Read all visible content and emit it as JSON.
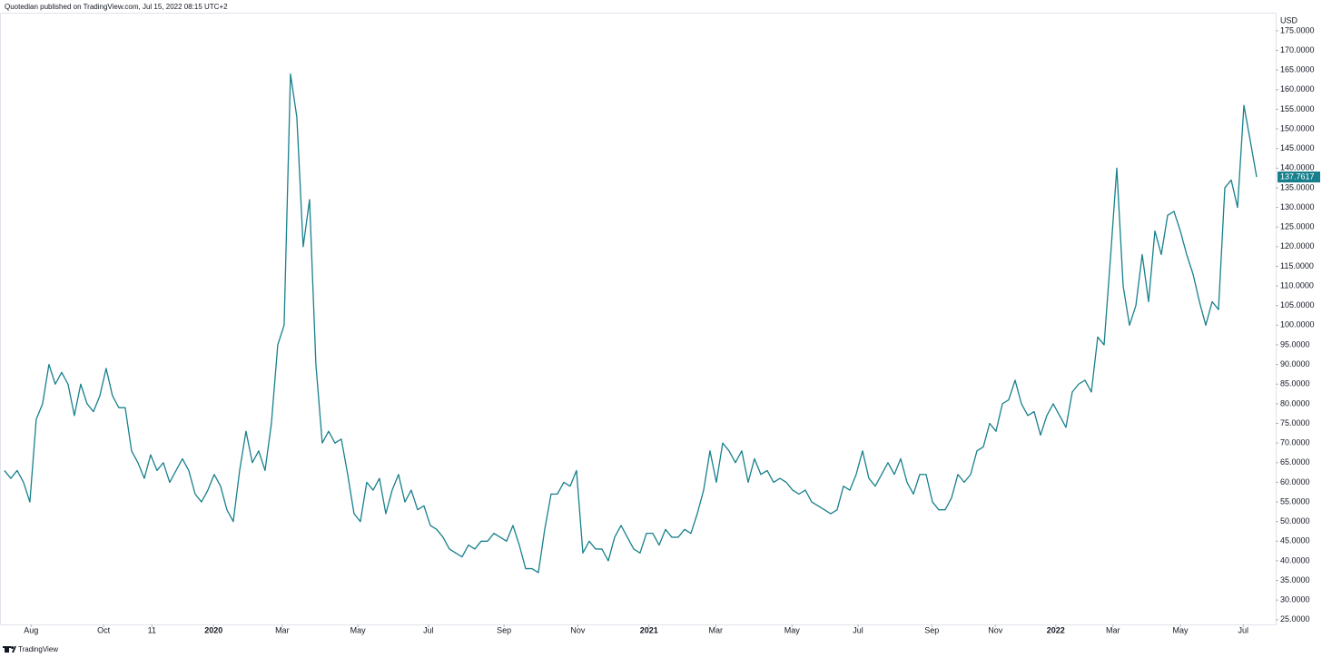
{
  "chart_data": {
    "type": "line",
    "header": "Quotedian published on TradingView.com, Jul 15, 2022 08:15 UTC+2",
    "y_axis_label": "USD",
    "footer": "TradingView",
    "color": "#17808c",
    "last_label": "137.7617",
    "values": [
      63,
      61,
      63,
      60,
      55,
      76,
      80,
      90,
      85,
      88,
      85,
      77,
      85,
      80,
      78,
      82,
      89,
      82,
      79,
      79,
      68,
      65,
      61,
      67,
      63,
      65,
      60,
      63,
      66,
      63,
      57,
      55,
      58,
      62,
      59,
      53,
      50,
      63,
      73,
      65,
      68,
      63,
      75,
      95,
      100,
      164,
      153,
      120,
      132,
      90,
      70,
      73,
      70,
      71,
      62,
      52,
      50,
      60,
      58,
      61,
      52,
      58,
      62,
      55,
      58,
      53,
      54,
      49,
      48,
      46,
      43,
      42,
      41,
      44,
      43,
      45,
      45,
      47,
      46,
      45,
      49,
      44,
      38,
      38,
      37,
      48,
      57,
      57,
      60,
      59,
      63,
      42,
      45,
      43,
      43,
      40,
      46,
      49,
      46,
      43,
      42,
      47,
      47,
      44,
      48,
      46,
      46,
      48,
      47,
      52,
      58,
      68,
      60,
      70,
      68,
      65,
      68,
      60,
      66,
      62,
      63,
      60,
      61,
      60,
      58,
      57,
      58,
      55,
      54,
      53,
      52,
      53,
      59,
      58,
      62,
      68,
      61,
      59,
      62,
      65,
      62,
      66,
      60,
      57,
      62,
      62,
      55,
      53,
      53,
      56,
      62,
      60,
      62,
      68,
      69,
      75,
      73,
      80,
      81,
      86,
      80,
      77,
      78,
      72,
      77,
      80,
      77,
      74,
      83,
      85,
      86,
      83,
      97,
      95,
      117,
      140,
      110,
      100,
      105,
      118,
      106,
      124,
      118,
      128,
      129,
      124,
      118,
      113,
      106,
      100,
      106,
      104,
      135,
      137,
      130,
      156,
      147,
      137.7617
    ],
    "xlim": [
      -0.7,
      200
    ],
    "xticks": [
      {
        "value": 4.2,
        "label": "Aug"
      },
      {
        "value": 15.6,
        "label": "Oct"
      },
      {
        "value": 23.2,
        "label": "11"
      },
      {
        "value": 32.9,
        "label": "2020"
      },
      {
        "value": 43.7,
        "label": "Mar"
      },
      {
        "value": 55.6,
        "label": "May"
      },
      {
        "value": 66.7,
        "label": "Jul"
      },
      {
        "value": 78.6,
        "label": "Sep"
      },
      {
        "value": 90.2,
        "label": "Nov"
      },
      {
        "value": 101.4,
        "label": "2021"
      },
      {
        "value": 111.9,
        "label": "Mar"
      },
      {
        "value": 123.9,
        "label": "May"
      },
      {
        "value": 134.3,
        "label": "Jul"
      },
      {
        "value": 145.9,
        "label": "Sep"
      },
      {
        "value": 155.9,
        "label": "Nov"
      },
      {
        "value": 165.4,
        "label": "2022"
      },
      {
        "value": 174.4,
        "label": "Mar"
      },
      {
        "value": 185.0,
        "label": "May"
      },
      {
        "value": 194.9,
        "label": "Jul"
      }
    ],
    "ylim": [
      23.8,
      179.6
    ],
    "yticks": [
      {
        "value": 25,
        "label": "25.0000"
      },
      {
        "value": 30,
        "label": "30.0000"
      },
      {
        "value": 35,
        "label": "35.0000"
      },
      {
        "value": 40,
        "label": "40.0000"
      },
      {
        "value": 45,
        "label": "45.0000"
      },
      {
        "value": 50,
        "label": "50.0000"
      },
      {
        "value": 55,
        "label": "55.0000"
      },
      {
        "value": 60,
        "label": "60.0000"
      },
      {
        "value": 65,
        "label": "65.0000"
      },
      {
        "value": 70,
        "label": "70.0000"
      },
      {
        "value": 75,
        "label": "75.0000"
      },
      {
        "value": 80,
        "label": "80.0000"
      },
      {
        "value": 85,
        "label": "85.0000"
      },
      {
        "value": 90,
        "label": "90.0000"
      },
      {
        "value": 95,
        "label": "95.0000"
      },
      {
        "value": 100,
        "label": "100.0000"
      },
      {
        "value": 105,
        "label": "105.0000"
      },
      {
        "value": 110,
        "label": "110.0000"
      },
      {
        "value": 115,
        "label": "115.0000"
      },
      {
        "value": 120,
        "label": "120.0000"
      },
      {
        "value": 125,
        "label": "125.0000"
      },
      {
        "value": 130,
        "label": "130.0000"
      },
      {
        "value": 135,
        "label": "135.0000"
      },
      {
        "value": 140,
        "label": "140.0000"
      },
      {
        "value": 145,
        "label": "145.0000"
      },
      {
        "value": 150,
        "label": "150.0000"
      },
      {
        "value": 155,
        "label": "155.0000"
      },
      {
        "value": 160,
        "label": "160.0000"
      },
      {
        "value": 165,
        "label": "165.0000"
      },
      {
        "value": 170,
        "label": "170.0000"
      },
      {
        "value": 175,
        "label": "175.0000"
      }
    ],
    "grid": false
  }
}
